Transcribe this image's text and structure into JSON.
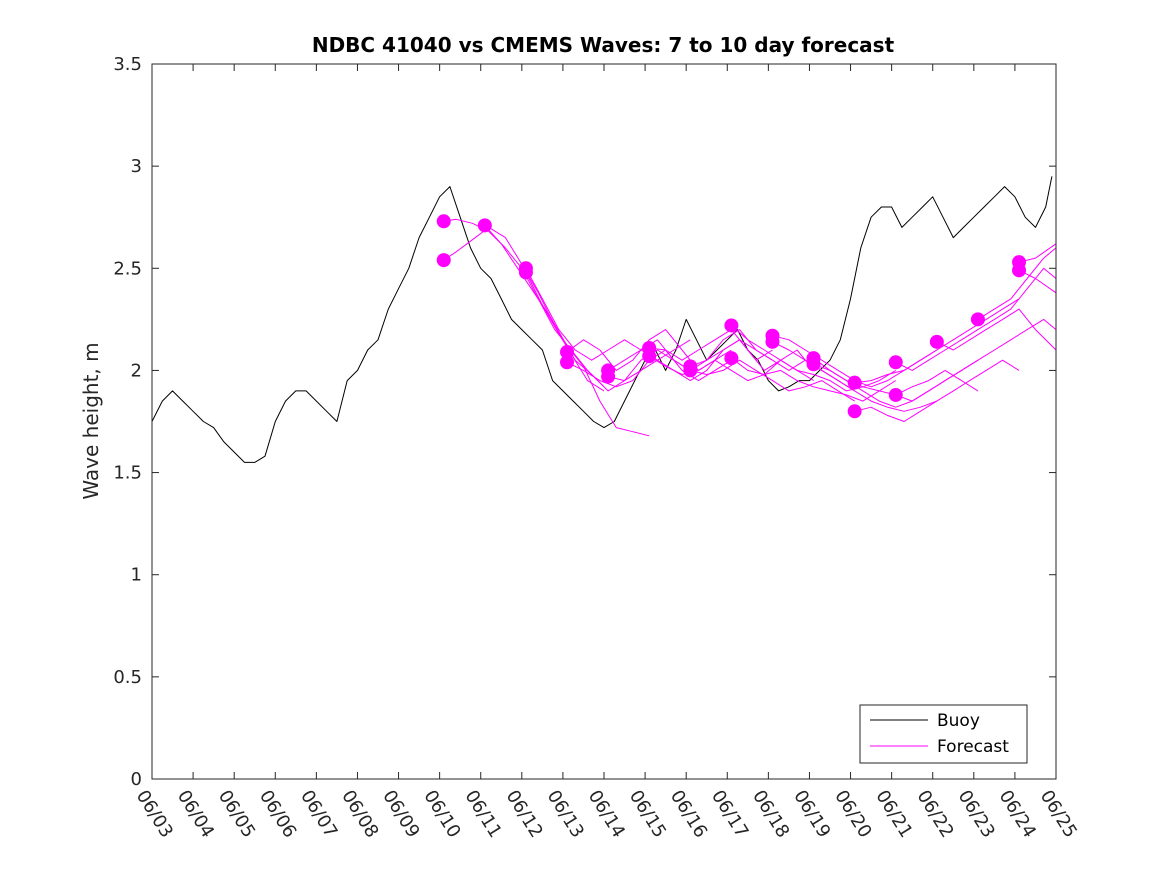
{
  "chart_data": {
    "type": "line",
    "title": "NDBC 41040 vs CMEMS Waves: 7 to 10 day forecast",
    "xlabel": "",
    "ylabel": "Wave height, m",
    "xlim": [
      0,
      22
    ],
    "ylim": [
      0,
      3.5
    ],
    "x_tick_labels": [
      "06/03",
      "06/04",
      "06/05",
      "06/06",
      "06/07",
      "06/08",
      "06/09",
      "06/10",
      "06/11",
      "06/12",
      "06/13",
      "06/14",
      "06/15",
      "06/16",
      "06/17",
      "06/18",
      "06/19",
      "06/20",
      "06/21",
      "06/22",
      "06/23",
      "06/24",
      "06/25"
    ],
    "y_ticks": [
      0,
      0.5,
      1,
      1.5,
      2,
      2.5,
      3,
      3.5
    ],
    "y_tick_labels": [
      "0",
      "0.5",
      "1",
      "1.5",
      "2",
      "2.5",
      "3",
      "3.5"
    ],
    "grid": false,
    "legend_position": "bottom-right",
    "legend": [
      "Buoy",
      "Forecast"
    ],
    "colors": {
      "buoy": "#000000",
      "forecast": "#ff00ff"
    },
    "series": [
      {
        "name": "Buoy",
        "x": [
          0,
          0.25,
          0.5,
          0.75,
          1,
          1.25,
          1.5,
          1.75,
          2,
          2.25,
          2.5,
          2.75,
          3,
          3.25,
          3.5,
          3.75,
          4,
          4.25,
          4.5,
          4.75,
          5,
          5.25,
          5.5,
          5.75,
          6,
          6.25,
          6.5,
          6.75,
          7,
          7.25,
          7.5,
          7.75,
          8,
          8.25,
          8.5,
          8.75,
          9,
          9.25,
          9.5,
          9.75,
          10,
          10.25,
          10.5,
          10.75,
          11,
          11.25,
          11.5,
          11.75,
          12,
          12.25,
          12.5,
          12.75,
          13,
          13.25,
          13.5,
          13.75,
          14,
          14.25,
          14.5,
          14.75,
          15,
          15.25,
          15.5,
          15.75,
          16,
          16.25,
          16.5,
          16.75,
          17,
          17.25,
          17.5,
          17.75,
          18,
          18.25,
          18.5,
          18.75,
          19,
          19.25,
          19.5,
          19.75,
          20,
          20.25,
          20.5,
          20.75,
          21,
          21.25,
          21.5,
          21.75,
          21.9
        ],
        "y": [
          1.75,
          1.85,
          1.9,
          1.85,
          1.8,
          1.75,
          1.72,
          1.65,
          1.6,
          1.55,
          1.55,
          1.58,
          1.75,
          1.85,
          1.9,
          1.9,
          1.85,
          1.8,
          1.75,
          1.95,
          2.0,
          2.1,
          2.15,
          2.3,
          2.4,
          2.5,
          2.65,
          2.75,
          2.85,
          2.9,
          2.75,
          2.6,
          2.5,
          2.45,
          2.35,
          2.25,
          2.2,
          2.15,
          2.1,
          1.95,
          1.9,
          1.85,
          1.8,
          1.75,
          1.72,
          1.75,
          1.85,
          1.95,
          2.05,
          2.1,
          2.0,
          2.1,
          2.25,
          2.15,
          2.05,
          2.1,
          2.15,
          2.2,
          2.1,
          2.05,
          1.95,
          1.9,
          1.92,
          1.95,
          1.95,
          2.0,
          2.05,
          2.15,
          2.35,
          2.6,
          2.75,
          2.8,
          2.8,
          2.7,
          2.75,
          2.8,
          2.85,
          2.75,
          2.65,
          2.7,
          2.75,
          2.8,
          2.85,
          2.9,
          2.85,
          2.75,
          2.7,
          2.8,
          2.95
        ]
      },
      {
        "name": "Forecast",
        "x": [
          7.1,
          7.4,
          7.8,
          8.2,
          8.6,
          9.0,
          9.4,
          9.8,
          10.2,
          10.6,
          11.0
        ],
        "y": [
          2.73,
          2.74,
          2.72,
          2.68,
          2.6,
          2.5,
          2.35,
          2.2,
          2.1,
          2.0,
          1.92
        ]
      },
      {
        "name": "Forecast",
        "x": [
          7.1,
          7.4,
          7.8,
          8.2,
          8.6,
          9.0,
          9.4,
          9.8,
          10.2,
          10.6,
          11.0
        ],
        "y": [
          2.54,
          2.58,
          2.64,
          2.7,
          2.65,
          2.52,
          2.38,
          2.22,
          2.08,
          1.95,
          1.9
        ]
      },
      {
        "name": "Forecast",
        "x": [
          8.1,
          8.5,
          8.9,
          9.3,
          9.7,
          10.1,
          10.5,
          10.9,
          11.3,
          11.7,
          12.1
        ],
        "y": [
          2.71,
          2.62,
          2.5,
          2.38,
          2.26,
          2.12,
          2.02,
          1.85,
          1.72,
          1.7,
          1.68
        ]
      },
      {
        "name": "Forecast",
        "x": [
          9.1,
          9.5,
          9.9,
          10.3,
          10.7,
          11.1,
          11.5,
          11.9,
          12.3,
          12.7,
          13.1
        ],
        "y": [
          2.5,
          2.35,
          2.2,
          2.1,
          2.05,
          2.1,
          2.15,
          2.1,
          2.05,
          2.1,
          2.15
        ]
      },
      {
        "name": "Forecast",
        "x": [
          9.1,
          9.5,
          9.9,
          10.3,
          10.7,
          11.1,
          11.5,
          11.9,
          12.3,
          12.7,
          13.1
        ],
        "y": [
          2.48,
          2.32,
          2.18,
          2.05,
          1.98,
          1.9,
          1.95,
          2.05,
          2.1,
          2.05,
          2.0
        ]
      },
      {
        "name": "Forecast",
        "x": [
          10.1,
          10.5,
          10.9,
          11.3,
          11.7,
          12.1,
          12.5,
          12.9,
          13.3,
          13.7,
          14.1
        ],
        "y": [
          2.09,
          2.15,
          2.1,
          2.0,
          2.05,
          2.15,
          2.2,
          2.1,
          2.0,
          2.05,
          2.1
        ]
      },
      {
        "name": "Forecast",
        "x": [
          10.1,
          10.5,
          10.9,
          11.3,
          11.7,
          12.1,
          12.5,
          12.9,
          13.3,
          13.7,
          14.1
        ],
        "y": [
          2.04,
          2.0,
          1.95,
          1.92,
          1.95,
          2.05,
          2.1,
          2.0,
          1.95,
          2.0,
          2.05
        ]
      },
      {
        "name": "Forecast",
        "x": [
          11.1,
          11.5,
          11.9,
          12.3,
          12.7,
          13.1,
          13.5,
          13.9,
          14.3,
          14.7,
          15.1
        ],
        "y": [
          2.0,
          2.05,
          2.1,
          2.15,
          2.05,
          2.0,
          2.05,
          2.15,
          2.2,
          2.1,
          2.05
        ]
      },
      {
        "name": "Forecast",
        "x": [
          11.1,
          11.5,
          11.9,
          12.3,
          12.7,
          13.1,
          13.5,
          13.9,
          14.3,
          14.7,
          15.1
        ],
        "y": [
          1.97,
          1.95,
          2.0,
          2.05,
          2.0,
          1.95,
          2.0,
          2.1,
          2.15,
          2.05,
          2.1
        ]
      },
      {
        "name": "Forecast",
        "x": [
          12.1,
          12.5,
          12.9,
          13.3,
          13.7,
          14.1,
          14.5,
          14.9,
          15.3,
          15.7,
          16.1
        ],
        "y": [
          2.11,
          2.1,
          2.05,
          2.1,
          2.15,
          2.2,
          2.1,
          2.0,
          2.05,
          2.1,
          2.0
        ]
      },
      {
        "name": "Forecast",
        "x": [
          12.1,
          12.5,
          12.9,
          13.3,
          13.7,
          14.1,
          14.5,
          14.9,
          15.3,
          15.7,
          16.1
        ],
        "y": [
          2.07,
          2.02,
          1.98,
          2.0,
          2.05,
          2.0,
          1.95,
          1.98,
          2.05,
          2.0,
          1.95
        ]
      },
      {
        "name": "Forecast",
        "x": [
          13.1,
          13.5,
          13.9,
          14.3,
          14.7,
          15.1,
          15.5,
          15.9,
          16.3,
          16.7,
          17.1
        ],
        "y": [
          2.02,
          2.05,
          2.1,
          2.15,
          2.1,
          2.05,
          2.0,
          2.05,
          2.0,
          1.95,
          1.9
        ]
      },
      {
        "name": "Forecast",
        "x": [
          13.1,
          13.5,
          13.9,
          14.3,
          14.7,
          15.1,
          15.5,
          15.9,
          16.3,
          16.7,
          17.1
        ],
        "y": [
          2.0,
          1.98,
          2.0,
          2.05,
          2.0,
          1.95,
          1.9,
          1.92,
          1.95,
          1.9,
          1.85
        ]
      },
      {
        "name": "Forecast",
        "x": [
          14.1,
          14.5,
          14.9,
          15.3,
          15.7,
          16.1,
          16.5,
          16.9,
          17.3,
          17.7,
          18.1
        ],
        "y": [
          2.22,
          2.15,
          2.1,
          2.05,
          2.0,
          1.98,
          1.95,
          1.9,
          1.92,
          1.95,
          2.0
        ]
      },
      {
        "name": "Forecast",
        "x": [
          14.1,
          14.5,
          14.9,
          15.3,
          15.7,
          16.1,
          16.5,
          16.9,
          17.3,
          17.7,
          18.1
        ],
        "y": [
          2.06,
          2.0,
          1.98,
          2.0,
          1.95,
          1.92,
          1.9,
          1.88,
          1.85,
          1.9,
          1.95
        ]
      },
      {
        "name": "Forecast",
        "x": [
          15.1,
          15.5,
          15.9,
          16.3,
          16.7,
          17.1,
          17.5,
          17.9,
          18.3,
          18.7,
          19.1
        ],
        "y": [
          2.17,
          2.15,
          2.1,
          2.05,
          2.0,
          1.95,
          1.92,
          1.95,
          2.0,
          2.05,
          2.1
        ]
      },
      {
        "name": "Forecast",
        "x": [
          15.1,
          15.5,
          15.9,
          16.3,
          16.7,
          17.1,
          17.5,
          17.9,
          18.3,
          18.7,
          19.1
        ],
        "y": [
          2.14,
          2.1,
          2.05,
          2.0,
          1.95,
          1.9,
          1.85,
          1.82,
          1.8,
          1.82,
          1.85
        ]
      },
      {
        "name": "Forecast",
        "x": [
          16.1,
          16.5,
          16.9,
          17.3,
          17.7,
          18.1,
          18.5,
          18.9,
          19.3,
          19.7,
          20.1
        ],
        "y": [
          2.06,
          2.0,
          1.95,
          1.9,
          1.85,
          1.82,
          1.85,
          1.9,
          1.95,
          2.0,
          2.05
        ]
      },
      {
        "name": "Forecast",
        "x": [
          16.1,
          16.5,
          16.9,
          17.3,
          17.7,
          18.1,
          18.5,
          18.9,
          19.3,
          19.7,
          20.1
        ],
        "y": [
          2.03,
          2.0,
          1.95,
          1.92,
          1.9,
          1.88,
          1.92,
          1.95,
          2.0,
          1.95,
          1.9
        ]
      },
      {
        "name": "Forecast",
        "x": [
          17.1,
          17.5,
          17.9,
          18.3,
          18.7,
          19.1,
          19.5,
          19.9,
          20.3,
          20.7,
          21.1
        ],
        "y": [
          1.94,
          1.95,
          1.98,
          2.0,
          2.05,
          2.1,
          2.15,
          2.2,
          2.25,
          2.3,
          2.35
        ]
      },
      {
        "name": "Forecast",
        "x": [
          17.1,
          17.5,
          17.9,
          18.3,
          18.7,
          19.1,
          19.5,
          19.9,
          20.3,
          20.7,
          21.1
        ],
        "y": [
          1.8,
          1.82,
          1.78,
          1.75,
          1.8,
          1.85,
          1.9,
          1.95,
          2.0,
          2.05,
          2.0
        ]
      },
      {
        "name": "Forecast",
        "x": [
          18.1,
          18.5,
          18.9,
          19.3,
          19.7,
          20.1,
          20.5,
          20.9,
          21.3,
          21.7,
          22.0
        ],
        "y": [
          2.04,
          2.0,
          2.05,
          2.1,
          2.15,
          2.2,
          2.25,
          2.3,
          2.4,
          2.5,
          2.45
        ]
      },
      {
        "name": "Forecast",
        "x": [
          18.1,
          18.5,
          18.9,
          19.3,
          19.7,
          20.1,
          20.5,
          20.9,
          21.3,
          21.7,
          22.0
        ],
        "y": [
          1.88,
          1.85,
          1.9,
          1.95,
          2.0,
          2.05,
          2.1,
          2.15,
          2.2,
          2.25,
          2.2
        ]
      },
      {
        "name": "Forecast",
        "x": [
          19.1,
          19.5,
          19.9,
          20.3,
          20.7,
          21.1,
          21.5,
          22.0
        ],
        "y": [
          2.14,
          2.1,
          2.15,
          2.2,
          2.25,
          2.3,
          2.2,
          2.1
        ]
      },
      {
        "name": "Forecast",
        "x": [
          20.1,
          20.5,
          20.9,
          21.3,
          21.7,
          22.0
        ],
        "y": [
          2.25,
          2.3,
          2.35,
          2.45,
          2.55,
          2.6
        ]
      },
      {
        "name": "Forecast",
        "x": [
          21.1,
          21.5,
          22.0
        ],
        "y": [
          2.53,
          2.55,
          2.62
        ]
      },
      {
        "name": "Forecast",
        "x": [
          21.1,
          21.5,
          22.0
        ],
        "y": [
          2.49,
          2.45,
          2.38
        ]
      }
    ]
  }
}
